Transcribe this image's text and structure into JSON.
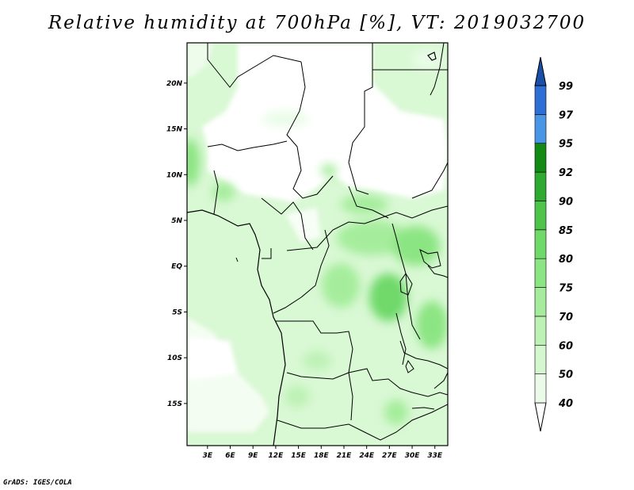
{
  "title": "Relative humidity at 700hPa [%], VT: 2019032700",
  "credit": "GrADS: IGES/COLA",
  "y_ticks": [
    {
      "label": "20N",
      "lat": 20
    },
    {
      "label": "15N",
      "lat": 15
    },
    {
      "label": "10N",
      "lat": 10
    },
    {
      "label": "5N",
      "lat": 5
    },
    {
      "label": "EQ",
      "lat": 0
    },
    {
      "label": "5S",
      "lat": -5
    },
    {
      "label": "10S",
      "lat": -10
    },
    {
      "label": "15S",
      "lat": -15
    }
  ],
  "x_ticks": [
    {
      "label": "3E",
      "lon": 3
    },
    {
      "label": "6E",
      "lon": 6
    },
    {
      "label": "9E",
      "lon": 9
    },
    {
      "label": "12E",
      "lon": 12
    },
    {
      "label": "15E",
      "lon": 15
    },
    {
      "label": "18E",
      "lon": 18
    },
    {
      "label": "21E",
      "lon": 21
    },
    {
      "label": "24E",
      "lon": 24
    },
    {
      "label": "27E",
      "lon": 27
    },
    {
      "label": "30E",
      "lon": 30
    },
    {
      "label": "33E",
      "lon": 33
    }
  ],
  "extent": {
    "lon_min": 0.3,
    "lon_max": 34.7,
    "lat_min": -19.6,
    "lat_max": 24.4
  },
  "colorbar": {
    "levels": [
      "40",
      "50",
      "60",
      "70",
      "75",
      "80",
      "85",
      "90",
      "92",
      "95",
      "97",
      "99"
    ],
    "colors": [
      "#ffffff",
      "#eafce8",
      "#d4f7cf",
      "#bdf2b5",
      "#a5ed9c",
      "#8ce583",
      "#6fd96a",
      "#4ec44b",
      "#2faa30",
      "#138a14",
      "#4a96e6",
      "#2d6fd4",
      "#1a4fa8"
    ]
  }
}
